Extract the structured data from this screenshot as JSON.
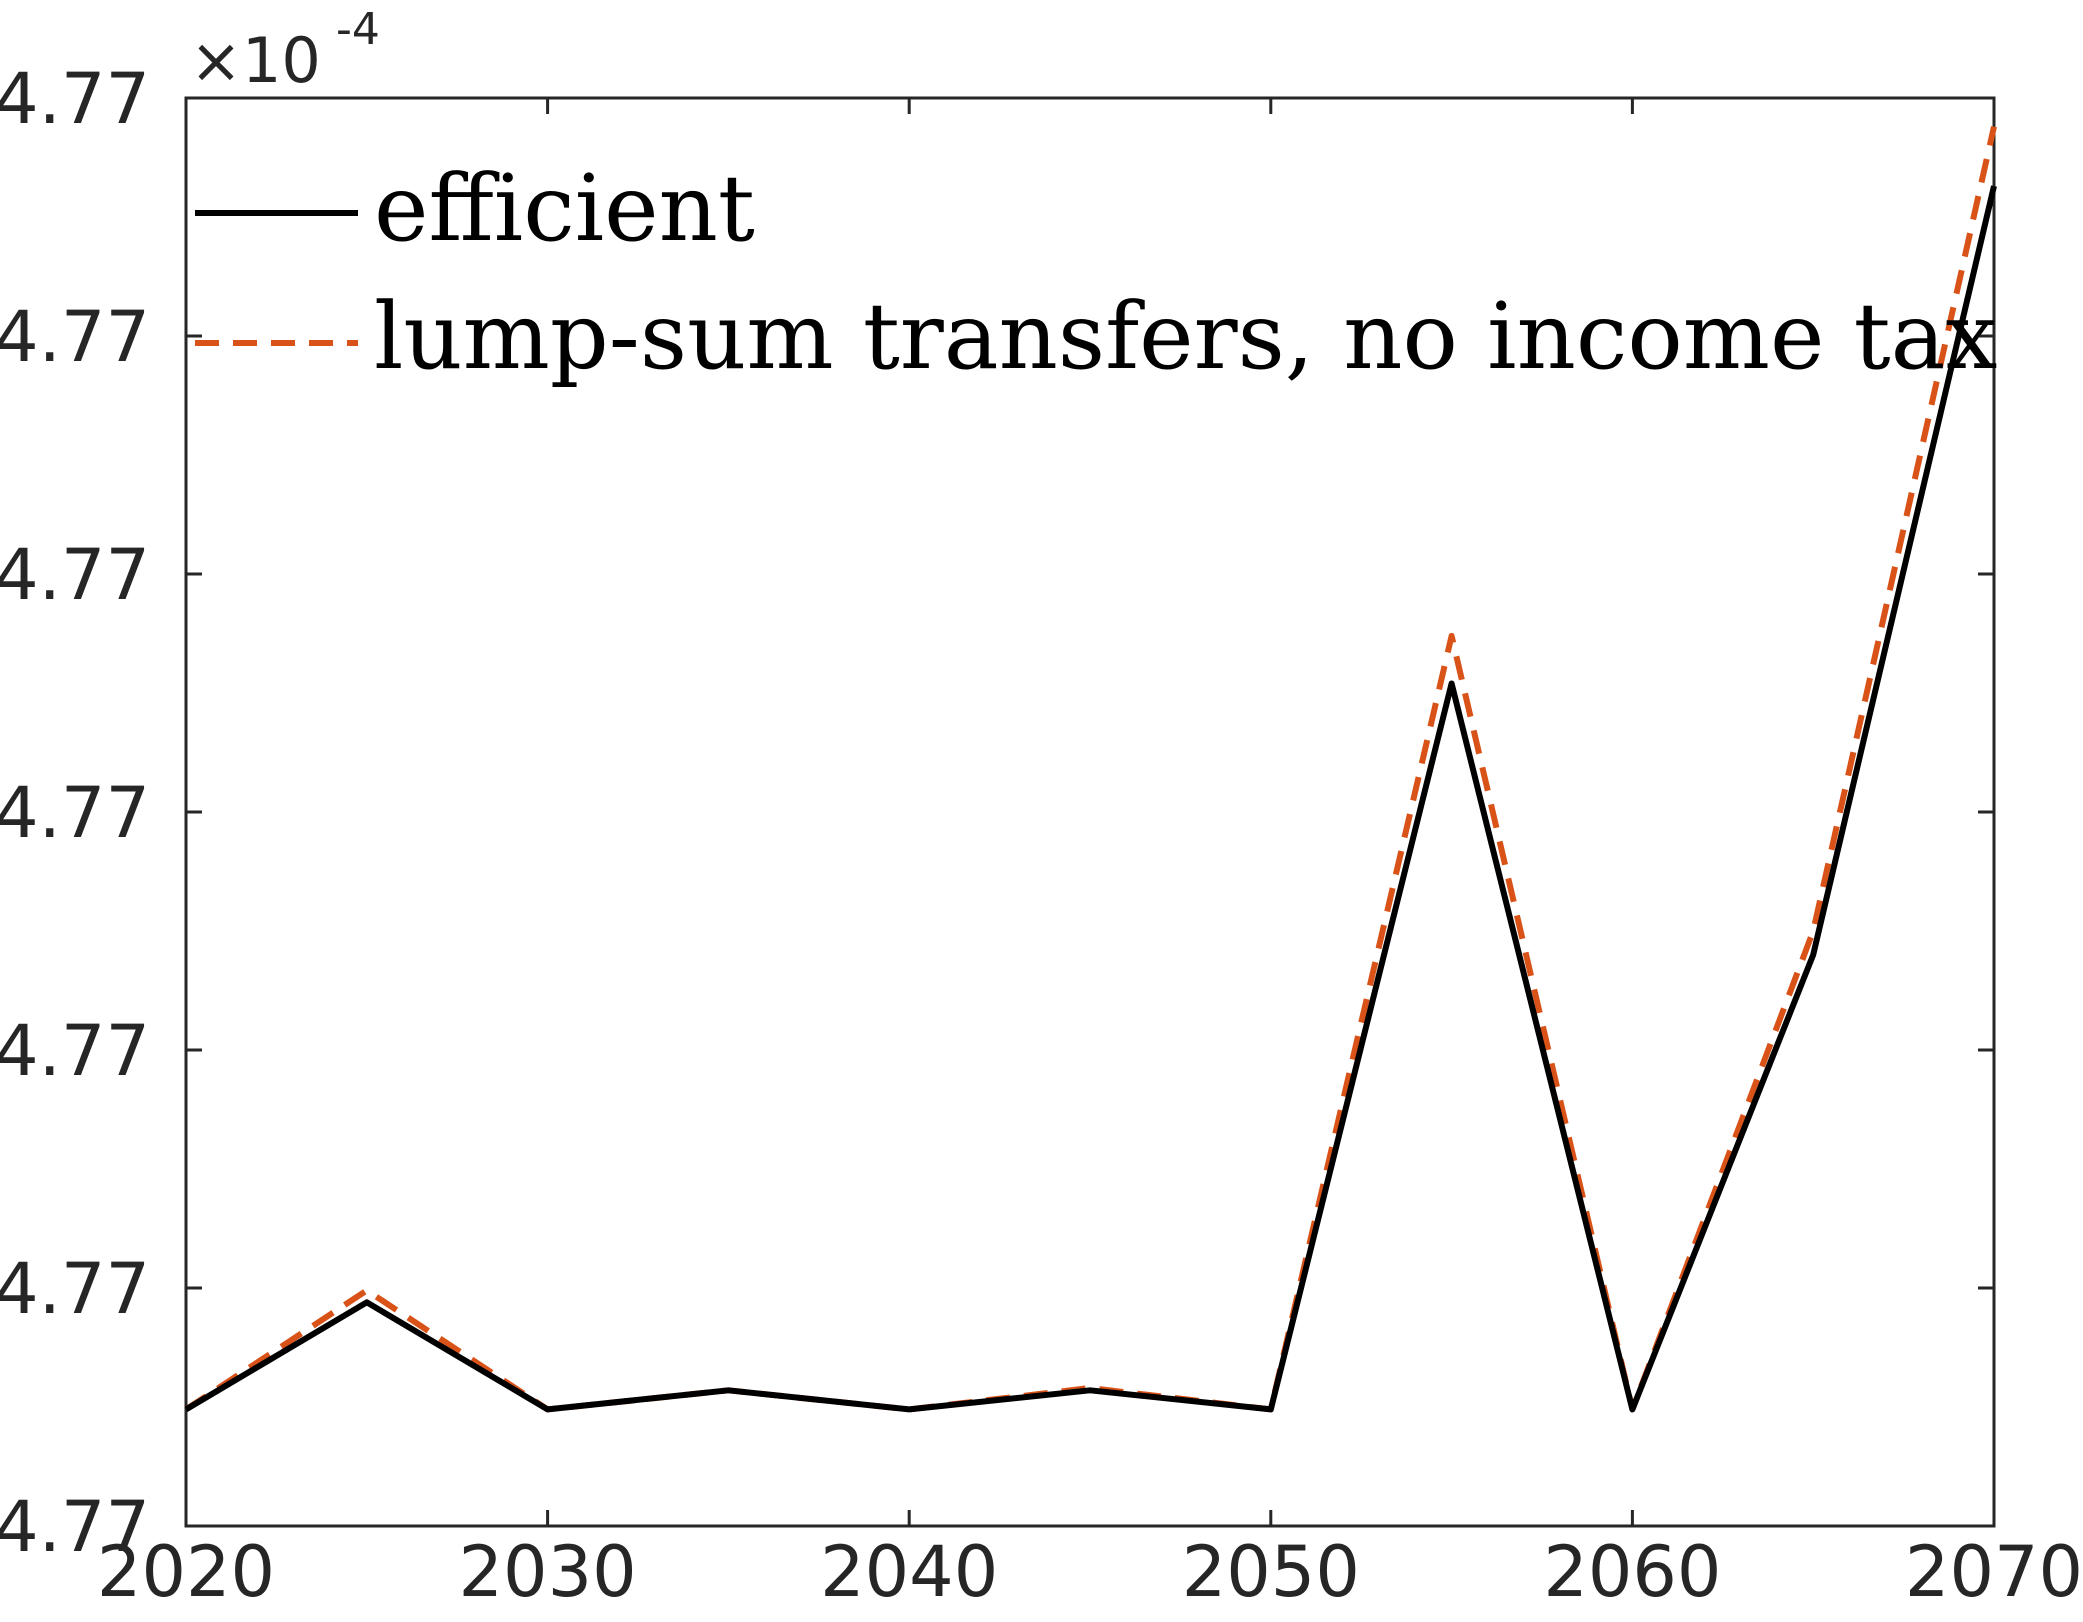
{
  "chart_data": {
    "type": "line",
    "x": [
      2020,
      2025,
      2030,
      2035,
      2040,
      2045,
      2050,
      2055,
      2060,
      2065,
      2070
    ],
    "xlim": [
      2020,
      2070
    ],
    "xticks": [
      2020,
      2030,
      2040,
      2050,
      2060,
      2070
    ],
    "xtick_labels": [
      "2020",
      "2030",
      "2040",
      "2050",
      "2060",
      "2070"
    ],
    "ylim": [
      0.0,
      6.0
    ],
    "yticks": [
      0,
      1,
      2,
      3,
      4,
      5,
      6
    ],
    "ytick_labels": [
      "4.77",
      "4.77",
      "4.77",
      "4.77",
      "4.77",
      "4.77",
      "4.77"
    ],
    "y_exponent": {
      "base": "×10",
      "power": "-4"
    },
    "y_units_note": "y values are in tick-step units relative to the bottom tick; tick labels are rounded",
    "series": [
      {
        "name": "efficient",
        "color": "#000000",
        "style": "solid",
        "values": [
          0.49,
          0.94,
          0.49,
          0.57,
          0.49,
          0.57,
          0.49,
          3.54,
          0.49,
          2.4,
          5.63
        ]
      },
      {
        "name": "lump-sum transfers, no income tax",
        "color": "#D95319",
        "style": "dashed",
        "values": [
          0.49,
          0.99,
          0.49,
          0.57,
          0.49,
          0.58,
          0.49,
          3.74,
          0.49,
          2.5,
          5.88
        ]
      }
    ],
    "legend_position": "top-left",
    "grid": false,
    "title": "",
    "xlabel": "",
    "ylabel": ""
  }
}
